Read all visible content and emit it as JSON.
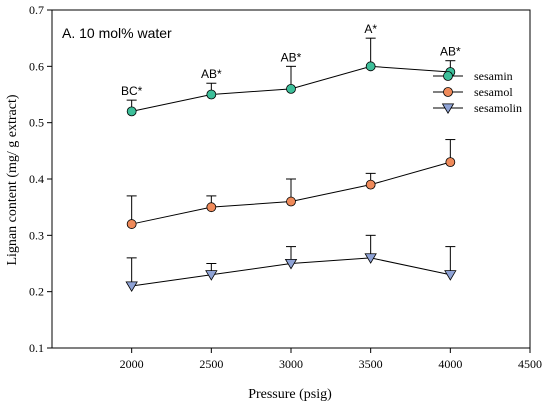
{
  "chart_data": {
    "type": "line",
    "panel_label": "A. 10 mol% water",
    "xlabel": "Pressure (psig)",
    "ylabel": "Lignan content (mg/ g extract)",
    "xlim": [
      1500,
      4500
    ],
    "ylim": [
      0.1,
      0.7
    ],
    "x_ticks": [
      2000,
      2500,
      3000,
      3500,
      4000,
      4500
    ],
    "y_ticks": [
      0.1,
      0.2,
      0.3,
      0.4,
      0.5,
      0.6,
      0.7
    ],
    "x": [
      2000,
      2500,
      3000,
      3500,
      4000
    ],
    "grid": false,
    "legend_position": "top-right",
    "series": [
      {
        "name": "sesamin",
        "marker": "circle",
        "color": "#3dbf9a",
        "values": [
          0.52,
          0.55,
          0.56,
          0.6,
          0.59
        ],
        "error": [
          0.02,
          0.02,
          0.04,
          0.05,
          0.02
        ],
        "significance": [
          "BC*",
          "AB*",
          "AB*",
          "A*",
          "AB*"
        ]
      },
      {
        "name": "sesamol",
        "marker": "circle",
        "color": "#ef8a5a",
        "values": [
          0.32,
          0.35,
          0.36,
          0.39,
          0.43
        ],
        "error": [
          0.05,
          0.02,
          0.04,
          0.02,
          0.04
        ]
      },
      {
        "name": "sesamolin",
        "marker": "triangle-down",
        "color": "#8fa3d6",
        "values": [
          0.21,
          0.23,
          0.25,
          0.26,
          0.23
        ],
        "error": [
          0.05,
          0.02,
          0.03,
          0.04,
          0.05
        ]
      }
    ]
  }
}
